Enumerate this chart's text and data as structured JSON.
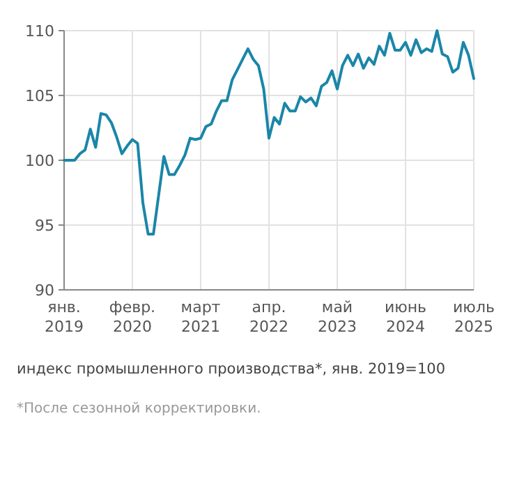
{
  "chart_data": {
    "type": "line",
    "title": "индекс промышленного производства*, янв. 2019=100",
    "annotations": [
      "*После сезонной корректировки."
    ],
    "categories": [
      "янв. 2019",
      null,
      null,
      null,
      null,
      null,
      null,
      null,
      null,
      null,
      null,
      null,
      null,
      "февр. 2020",
      null,
      null,
      null,
      null,
      null,
      null,
      null,
      null,
      null,
      null,
      null,
      null,
      "март 2021",
      null,
      null,
      null,
      null,
      null,
      null,
      null,
      null,
      null,
      null,
      null,
      null,
      "апр. 2022",
      null,
      null,
      null,
      null,
      null,
      null,
      null,
      null,
      null,
      null,
      null,
      null,
      "май 2023",
      null,
      null,
      null,
      null,
      null,
      null,
      null,
      null,
      null,
      null,
      null,
      null,
      "июнь 2024",
      null,
      null,
      null,
      null,
      null,
      null,
      null,
      null,
      null,
      null,
      null,
      null,
      "июль 2025"
    ],
    "series": [
      {
        "color": "#1a86a8",
        "values": [
          100.0,
          100.0,
          100.0,
          100.5,
          100.8,
          102.4,
          101.0,
          103.6,
          103.5,
          102.9,
          101.8,
          100.5,
          101.1,
          101.6,
          101.3,
          96.7,
          94.3,
          94.3,
          97.3,
          100.3,
          98.9,
          98.9,
          99.6,
          100.4,
          101.7,
          101.6,
          101.7,
          102.6,
          102.8,
          103.8,
          104.6,
          104.6,
          106.2,
          107.0,
          107.8,
          108.6,
          107.8,
          107.3,
          105.5,
          101.7,
          103.3,
          102.8,
          104.4,
          103.8,
          103.8,
          104.9,
          104.5,
          104.8,
          104.2,
          105.7,
          106.0,
          106.9,
          105.5,
          107.3,
          108.1,
          107.3,
          108.2,
          107.1,
          107.9,
          107.4,
          108.8,
          108.1,
          109.8,
          108.5,
          108.5,
          109.1,
          108.1,
          109.3,
          108.3,
          108.6,
          108.4,
          110.0,
          108.2,
          108.0,
          106.8,
          107.1,
          109.1,
          108.1,
          106.3
        ]
      }
    ],
    "ylim": [
      90,
      110
    ],
    "yticks": [
      90,
      95,
      100,
      105,
      110
    ],
    "grid": true
  }
}
